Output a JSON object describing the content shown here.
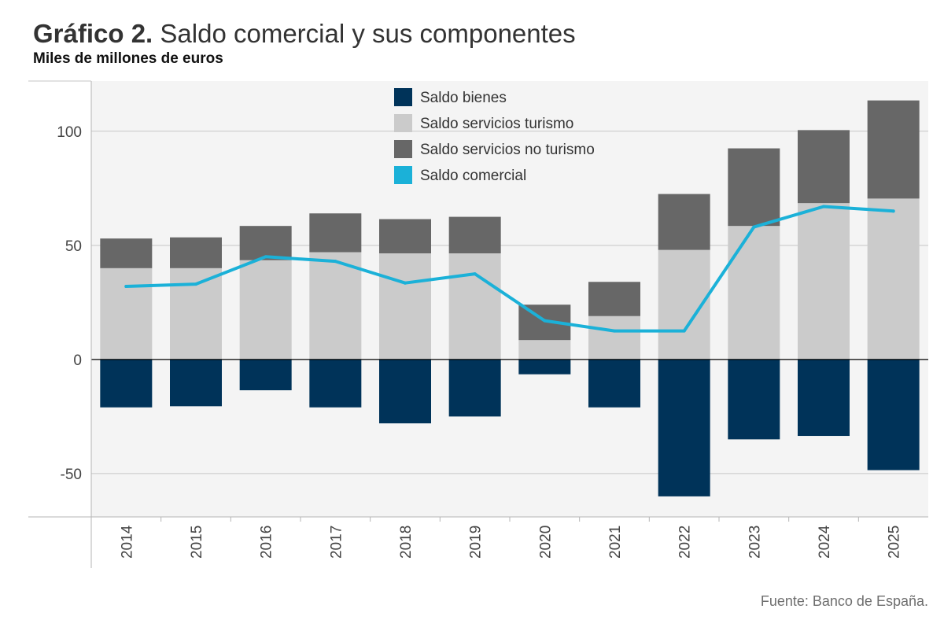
{
  "title_bold": "Gráfico 2.",
  "title_rest": " Saldo comercial y sus componentes",
  "subtitle": "Miles de millones de euros",
  "source": "Fuente: Banco de España.",
  "chart_data": {
    "type": "bar",
    "stacked": true,
    "categories": [
      "2014",
      "2015",
      "2016",
      "2017",
      "2018",
      "2019",
      "2020",
      "2021",
      "2022",
      "2023",
      "2024",
      "2025"
    ],
    "series": [
      {
        "name": "Saldo bienes",
        "kind": "bar",
        "color": "#003359",
        "values": [
          -21,
          -20.5,
          -13.5,
          -21,
          -28,
          -25,
          -6.5,
          -21,
          -60,
          -35,
          -33.5,
          -48.5
        ]
      },
      {
        "name": "Saldo servicios turismo",
        "kind": "bar",
        "color": "#cbcbcb",
        "values": [
          40,
          40,
          43.5,
          47,
          46.5,
          46.5,
          8.5,
          19,
          48,
          58.5,
          68.5,
          70.5
        ]
      },
      {
        "name": "Saldo servicios no turismo",
        "kind": "bar",
        "color": "#676767",
        "values": [
          13,
          13.5,
          15,
          17,
          15,
          16,
          15.5,
          15,
          24.5,
          34,
          32,
          43
        ]
      },
      {
        "name": "Saldo comercial",
        "kind": "line",
        "color": "#1bb1d8",
        "values": [
          32,
          33,
          45,
          43,
          33.5,
          37.5,
          17,
          12.5,
          12.5,
          58,
          67,
          65
        ]
      }
    ],
    "yticks": [
      -50,
      0,
      50,
      100
    ],
    "ylim": [
      -69,
      122
    ],
    "grid": true,
    "legend_position": "top-center"
  }
}
